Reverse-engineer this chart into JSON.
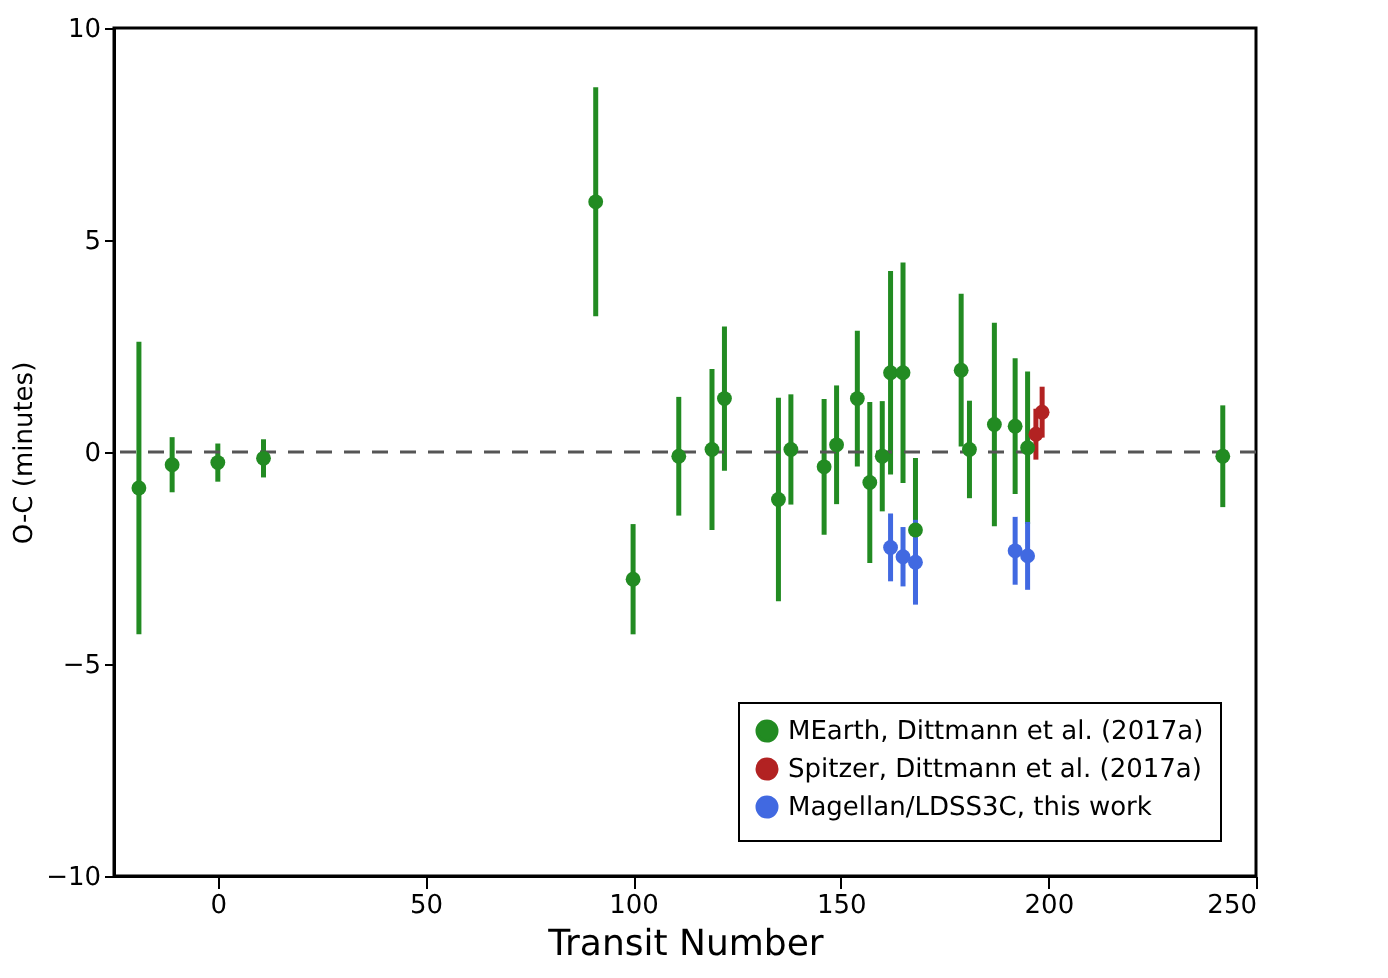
{
  "chart_data": {
    "type": "scatter",
    "xlabel": "Transit Number",
    "ylabel": "O-C (minutes)",
    "xlim": [
      -25,
      250
    ],
    "xticks": [
      0,
      50,
      100,
      150,
      200,
      250
    ],
    "ylim": [
      -10,
      10
    ],
    "yticks": [
      -10,
      -5,
      0,
      5,
      10
    ],
    "grid": false,
    "legend": "bottom right",
    "marker": "circle",
    "ref_lines": [
      {
        "axis": "y",
        "value": 0,
        "color": "#555555",
        "line_style": "dashed"
      }
    ],
    "series": [
      {
        "name": "MEarth, Dittmann et al. (2017a)",
        "color": "#228b22",
        "x": [
          -19,
          -11,
          0,
          11,
          91,
          100,
          111,
          119,
          122,
          135,
          138,
          146,
          149,
          154,
          157,
          160,
          162,
          165,
          168,
          179,
          181,
          187,
          192,
          195,
          242
        ],
        "values": [
          -0.85,
          -0.3,
          -0.25,
          -0.15,
          5.9,
          -3.0,
          -0.1,
          0.06,
          1.26,
          -1.12,
          0.06,
          -0.35,
          0.17,
          1.26,
          -0.72,
          -0.1,
          1.87,
          1.87,
          -1.84,
          1.93,
          0.06,
          0.65,
          0.61,
          0.1,
          -0.1
        ],
        "errors": [
          3.45,
          0.65,
          0.45,
          0.45,
          2.7,
          1.3,
          1.4,
          1.9,
          1.7,
          2.4,
          1.3,
          1.6,
          1.4,
          1.6,
          1.9,
          1.3,
          2.4,
          2.6,
          1.7,
          1.8,
          1.15,
          2.4,
          1.6,
          1.8,
          1.2
        ]
      },
      {
        "name": "Spitzer, Dittmann et al. (2017a)",
        "color": "#b22222",
        "x": [
          197,
          198.5
        ],
        "values": [
          0.42,
          0.94
        ],
        "errors": [
          0.6,
          0.6
        ]
      },
      {
        "name": "Magellan/LDSS3C, this work",
        "color": "#4169e1",
        "x": [
          162,
          165,
          168,
          192,
          195
        ],
        "values": [
          -2.25,
          -2.47,
          -2.6,
          -2.33,
          -2.45
        ],
        "errors": [
          0.8,
          0.7,
          1.0,
          0.8,
          0.8
        ]
      }
    ]
  }
}
